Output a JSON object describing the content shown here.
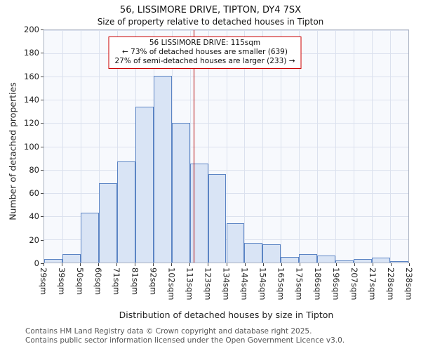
{
  "chart_data": {
    "type": "bar",
    "title": "56, LISSIMORE DRIVE, TIPTON, DY4 7SX",
    "subtitle": "Size of property relative to detached houses in Tipton",
    "xlabel": "Distribution of detached houses by size in Tipton",
    "ylabel": "Number of detached properties",
    "ylim": [
      0,
      200
    ],
    "ytick_step": 20,
    "grid": true,
    "legend": "none",
    "bin_edges_sqm": [
      29,
      39,
      50,
      60,
      71,
      81,
      92,
      102,
      113,
      123,
      134,
      144,
      154,
      165,
      175,
      186,
      196,
      207,
      217,
      228,
      238
    ],
    "tick_labels": [
      "29sqm",
      "39sqm",
      "50sqm",
      "60sqm",
      "71sqm",
      "81sqm",
      "92sqm",
      "102sqm",
      "113sqm",
      "123sqm",
      "134sqm",
      "144sqm",
      "154sqm",
      "165sqm",
      "175sqm",
      "186sqm",
      "196sqm",
      "207sqm",
      "217sqm",
      "228sqm",
      "238sqm"
    ],
    "values": [
      3,
      7,
      43,
      68,
      87,
      134,
      161,
      120,
      85,
      76,
      34,
      17,
      16,
      5,
      7,
      6,
      2,
      3,
      4,
      1
    ],
    "marker": {
      "value_sqm": 115,
      "color": "#b30000"
    },
    "annotation": {
      "line1": "56 LISSIMORE DRIVE: 115sqm",
      "line2": "← 73% of detached houses are smaller (639)",
      "line3": "27% of semi-detached houses are larger (233) →",
      "border_color": "#cc0000"
    },
    "colors": {
      "bar_fill": "#d9e4f5",
      "bar_border": "#5b84c4",
      "grid": "#dbe1ee"
    }
  },
  "footer": {
    "line1": "Contains HM Land Registry data © Crown copyright and database right 2025.",
    "line2": "Contains public sector information licensed under the Open Government Licence v3.0."
  }
}
